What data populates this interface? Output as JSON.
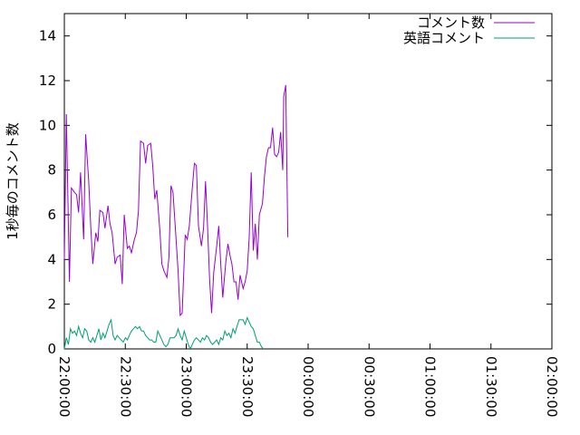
{
  "chart_data": {
    "type": "line",
    "title": "",
    "xlabel": "",
    "ylabel": "1秒毎のコメント数",
    "ylim": [
      0,
      15
    ],
    "xlim": [
      "22:00:00",
      "02:00:00"
    ],
    "grid": false,
    "legend_position": "top-right",
    "y_ticks": [
      "0",
      "2",
      "4",
      "6",
      "8",
      "10",
      "12",
      "14"
    ],
    "x_ticks": [
      "22:00:00",
      "22:30:00",
      "23:00:00",
      "23:30:00",
      "00:00:00",
      "00:30:00",
      "01:00:00",
      "01:30:00",
      "02:00:00"
    ],
    "x_tick_interval_minutes": 30,
    "series": [
      {
        "name": "コメント数",
        "color": "#9400d3",
        "points": [
          [
            "22:00:00",
            4.0
          ],
          [
            "22:01:00",
            10.5
          ],
          [
            "22:02:30",
            3.0
          ],
          [
            "22:03:30",
            7.2
          ],
          [
            "22:05:00",
            7.0
          ],
          [
            "22:06:00",
            6.9
          ],
          [
            "22:07:00",
            6.1
          ],
          [
            "22:08:00",
            7.9
          ],
          [
            "22:09:30",
            4.9
          ],
          [
            "22:10:30",
            9.6
          ],
          [
            "22:12:00",
            7.5
          ],
          [
            "22:13:00",
            5.5
          ],
          [
            "22:14:00",
            3.8
          ],
          [
            "22:15:30",
            5.2
          ],
          [
            "22:16:30",
            4.8
          ],
          [
            "22:17:30",
            6.2
          ],
          [
            "22:19:00",
            6.1
          ],
          [
            "22:20:00",
            5.4
          ],
          [
            "22:21:30",
            6.4
          ],
          [
            "22:22:30",
            5.6
          ],
          [
            "22:23:30",
            5.2
          ],
          [
            "22:25:00",
            3.8
          ],
          [
            "22:26:00",
            4.1
          ],
          [
            "22:27:30",
            4.2
          ],
          [
            "22:28:30",
            2.9
          ],
          [
            "22:29:30",
            6.0
          ],
          [
            "22:31:00",
            4.5
          ],
          [
            "22:32:00",
            4.6
          ],
          [
            "22:33:00",
            4.3
          ],
          [
            "22:34:30",
            4.9
          ],
          [
            "22:35:30",
            5.2
          ],
          [
            "22:36:30",
            6.2
          ],
          [
            "22:37:30",
            9.3
          ],
          [
            "22:39:00",
            9.2
          ],
          [
            "22:40:00",
            8.3
          ],
          [
            "22:41:00",
            9.1
          ],
          [
            "22:42:30",
            9.2
          ],
          [
            "22:43:30",
            8.2
          ],
          [
            "22:44:30",
            6.7
          ],
          [
            "22:45:30",
            7.1
          ],
          [
            "22:47:00",
            5.3
          ],
          [
            "22:48:00",
            3.8
          ],
          [
            "22:49:00",
            3.5
          ],
          [
            "22:50:30",
            3.2
          ],
          [
            "22:51:30",
            4.1
          ],
          [
            "22:52:30",
            7.3
          ],
          [
            "22:53:30",
            7.0
          ],
          [
            "22:55:00",
            4.9
          ],
          [
            "22:56:00",
            3.5
          ],
          [
            "22:57:00",
            1.5
          ],
          [
            "22:58:00",
            1.6
          ],
          [
            "22:59:30",
            5.1
          ],
          [
            "23:00:30",
            4.9
          ],
          [
            "23:01:30",
            5.5
          ],
          [
            "23:03:00",
            7.2
          ],
          [
            "23:04:00",
            8.3
          ],
          [
            "23:05:00",
            8.2
          ],
          [
            "23:06:00",
            5.5
          ],
          [
            "23:07:30",
            4.6
          ],
          [
            "23:08:30",
            5.4
          ],
          [
            "23:09:30",
            7.5
          ],
          [
            "23:10:30",
            5.5
          ],
          [
            "23:11:30",
            3.1
          ],
          [
            "23:12:30",
            1.6
          ],
          [
            "23:13:30",
            3.4
          ],
          [
            "23:15:00",
            4.6
          ],
          [
            "23:16:00",
            5.5
          ],
          [
            "23:17:00",
            3.8
          ],
          [
            "23:18:00",
            2.3
          ],
          [
            "23:19:30",
            3.9
          ],
          [
            "23:20:30",
            4.7
          ],
          [
            "23:21:30",
            4.2
          ],
          [
            "23:22:30",
            3.8
          ],
          [
            "23:23:30",
            3.0
          ],
          [
            "23:24:30",
            3.0
          ],
          [
            "23:25:30",
            2.2
          ],
          [
            "23:26:30",
            3.3
          ],
          [
            "23:28:00",
            2.7
          ],
          [
            "23:29:00",
            3.0
          ],
          [
            "23:30:00",
            3.5
          ],
          [
            "23:31:00",
            5.0
          ],
          [
            "23:32:00",
            7.9
          ],
          [
            "23:33:00",
            4.4
          ],
          [
            "23:34:00",
            5.6
          ],
          [
            "23:35:00",
            4.0
          ],
          [
            "23:36:00",
            6.0
          ],
          [
            "23:37:30",
            6.5
          ],
          [
            "23:38:30",
            7.7
          ],
          [
            "23:39:30",
            8.6
          ],
          [
            "23:40:30",
            9.0
          ],
          [
            "23:41:30",
            9.0
          ],
          [
            "23:42:30",
            9.9
          ],
          [
            "23:43:30",
            8.7
          ],
          [
            "23:44:30",
            8.6
          ],
          [
            "23:45:30",
            8.8
          ],
          [
            "23:46:30",
            9.7
          ],
          [
            "23:47:30",
            8.0
          ],
          [
            "23:48:00",
            11.3
          ],
          [
            "23:49:00",
            11.8
          ],
          [
            "23:50:00",
            5.0
          ]
        ]
      },
      {
        "name": "英語コメント",
        "color": "#009e73",
        "points": [
          [
            "22:00:00",
            0.0
          ],
          [
            "22:01:00",
            0.5
          ],
          [
            "22:02:00",
            0.2
          ],
          [
            "22:03:00",
            0.9
          ],
          [
            "22:04:00",
            0.7
          ],
          [
            "22:05:00",
            0.8
          ],
          [
            "22:06:00",
            0.6
          ],
          [
            "22:07:00",
            1.0
          ],
          [
            "22:08:00",
            0.7
          ],
          [
            "22:09:00",
            0.5
          ],
          [
            "22:10:00",
            0.9
          ],
          [
            "22:11:00",
            0.8
          ],
          [
            "22:12:00",
            0.4
          ],
          [
            "22:13:00",
            0.3
          ],
          [
            "22:14:00",
            0.5
          ],
          [
            "22:15:00",
            0.3
          ],
          [
            "22:16:00",
            0.6
          ],
          [
            "22:17:00",
            0.9
          ],
          [
            "22:18:00",
            0.4
          ],
          [
            "22:19:00",
            0.7
          ],
          [
            "22:20:00",
            0.5
          ],
          [
            "22:21:00",
            0.8
          ],
          [
            "22:22:00",
            1.1
          ],
          [
            "22:23:00",
            1.3
          ],
          [
            "22:24:00",
            0.6
          ],
          [
            "22:25:00",
            0.4
          ],
          [
            "22:26:00",
            0.6
          ],
          [
            "22:27:00",
            0.5
          ],
          [
            "22:28:00",
            0.4
          ],
          [
            "22:29:00",
            0.3
          ],
          [
            "22:30:00",
            0.5
          ],
          [
            "22:31:00",
            0.4
          ],
          [
            "22:32:00",
            0.6
          ],
          [
            "22:33:00",
            0.8
          ],
          [
            "22:34:00",
            0.9
          ],
          [
            "22:35:00",
            1.0
          ],
          [
            "22:36:00",
            0.9
          ],
          [
            "22:37:00",
            1.0
          ],
          [
            "22:38:00",
            0.8
          ],
          [
            "22:39:00",
            0.8
          ],
          [
            "22:40:00",
            0.6
          ],
          [
            "22:41:00",
            0.5
          ],
          [
            "22:42:00",
            0.4
          ],
          [
            "22:43:00",
            0.4
          ],
          [
            "22:44:00",
            0.3
          ],
          [
            "22:45:00",
            0.3
          ],
          [
            "22:46:00",
            0.8
          ],
          [
            "22:47:00",
            0.6
          ],
          [
            "22:48:00",
            0.4
          ],
          [
            "22:49:00",
            0.2
          ],
          [
            "22:50:00",
            0.1
          ],
          [
            "22:51:00",
            0.2
          ],
          [
            "22:52:00",
            0.5
          ],
          [
            "22:53:00",
            0.5
          ],
          [
            "22:54:00",
            0.5
          ],
          [
            "22:55:00",
            0.6
          ],
          [
            "22:56:00",
            0.9
          ],
          [
            "22:57:00",
            0.6
          ],
          [
            "22:58:00",
            0.4
          ],
          [
            "22:59:00",
            0.8
          ],
          [
            "23:00:00",
            0.5
          ],
          [
            "23:01:00",
            0.2
          ],
          [
            "23:02:00",
            0.0
          ],
          [
            "23:03:00",
            0.2
          ],
          [
            "23:04:00",
            0.4
          ],
          [
            "23:05:00",
            0.5
          ],
          [
            "23:06:00",
            0.4
          ],
          [
            "23:07:00",
            0.3
          ],
          [
            "23:08:00",
            0.5
          ],
          [
            "23:09:00",
            0.4
          ],
          [
            "23:10:00",
            0.6
          ],
          [
            "23:11:00",
            0.5
          ],
          [
            "23:12:00",
            0.3
          ],
          [
            "23:13:00",
            0.2
          ],
          [
            "23:14:00",
            0.3
          ],
          [
            "23:15:00",
            0.4
          ],
          [
            "23:16:00",
            0.2
          ],
          [
            "23:17:00",
            0.5
          ],
          [
            "23:18:00",
            0.4
          ],
          [
            "23:19:00",
            0.8
          ],
          [
            "23:20:00",
            0.6
          ],
          [
            "23:21:00",
            0.7
          ],
          [
            "23:22:00",
            0.5
          ],
          [
            "23:23:00",
            0.9
          ],
          [
            "23:24:00",
            0.7
          ],
          [
            "23:25:00",
            1.0
          ],
          [
            "23:26:00",
            1.3
          ],
          [
            "23:27:00",
            1.3
          ],
          [
            "23:28:00",
            1.3
          ],
          [
            "23:29:00",
            1.1
          ],
          [
            "23:30:00",
            1.4
          ],
          [
            "23:31:00",
            1.2
          ],
          [
            "23:32:00",
            1.0
          ],
          [
            "23:33:00",
            0.9
          ],
          [
            "23:34:00",
            0.6
          ],
          [
            "23:35:00",
            0.3
          ],
          [
            "23:36:00",
            0.3
          ],
          [
            "23:37:00",
            0.1
          ],
          [
            "23:38:00",
            0.0
          ]
        ]
      }
    ]
  }
}
